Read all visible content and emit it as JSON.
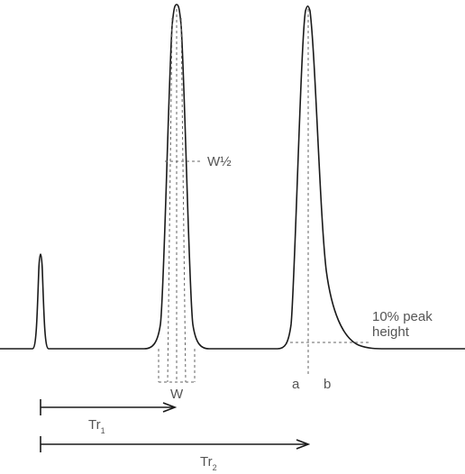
{
  "labels": {
    "w_half": "W½",
    "w": "W",
    "a": "a",
    "b": "b",
    "peak10_line1": "10% peak",
    "peak10_line2": "height",
    "tr1_main": "Tr",
    "tr1_sub": "1",
    "tr2_main": "Tr",
    "tr2_sub": "2"
  },
  "colors": {
    "trace": "#1a1a1a",
    "annotation": "#666666",
    "label": "#555555"
  }
}
